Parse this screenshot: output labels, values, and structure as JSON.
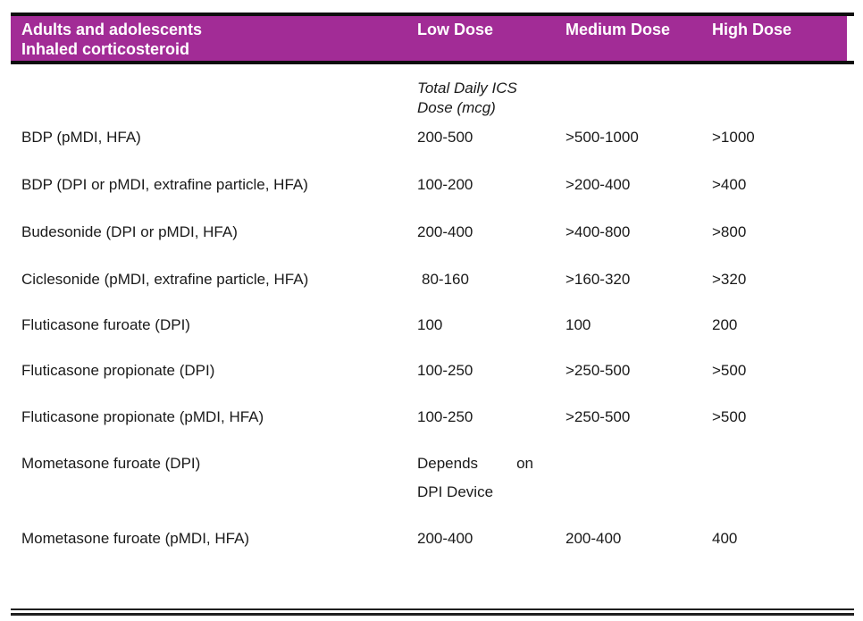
{
  "table": {
    "header": {
      "row_label_line1": "Adults and adolescents",
      "row_label_line2": "Inhaled corticosteroid",
      "low": "Low Dose",
      "medium": "Medium Dose",
      "high": "High Dose"
    },
    "subheader": {
      "line1": "Total Daily ICS",
      "line2": "Dose (mcg)"
    },
    "rows": [
      {
        "drug": "BDP (pMDI, HFA)",
        "low": "200-500",
        "medium": ">500-1000",
        "high": ">1000"
      },
      {
        "drug": "BDP (DPI or pMDI, extrafine particle, HFA)",
        "low": "100-200",
        "medium": ">200-400",
        "high": ">400"
      },
      {
        "drug": "Budesonide (DPI or pMDI, HFA)",
        "low": "200-400",
        "medium": ">400-800",
        "high": ">800"
      },
      {
        "drug": "Ciclesonide (pMDI, extrafine particle, HFA)",
        "low": "80-160",
        "medium": ">160-320",
        "high": ">320"
      },
      {
        "drug": "Fluticasone furoate (DPI)",
        "low": "100",
        "medium": "100",
        "high": "200"
      },
      {
        "drug": "Fluticasone propionate (DPI)",
        "low": "100-250",
        "medium": ">250-500",
        "high": ">500"
      },
      {
        "drug": "Fluticasone propionate (pMDI, HFA)",
        "low": "100-250",
        "medium": ">250-500",
        "high": ">500"
      },
      {
        "drug": "Mometasone furoate (DPI)",
        "low_word1": "Depends",
        "low_word2": "on",
        "low_line2": "DPI Device",
        "medium": "",
        "high": ""
      },
      {
        "drug": "Mometasone furoate (pMDI, HFA)",
        "low": "200-400",
        "medium": "200-400",
        "high": "400"
      }
    ],
    "colors": {
      "header_bg": "#A22C96",
      "header_text": "#FFFFFF",
      "body_text": "#1A1A1A",
      "rule": "#0E0E0E"
    }
  }
}
